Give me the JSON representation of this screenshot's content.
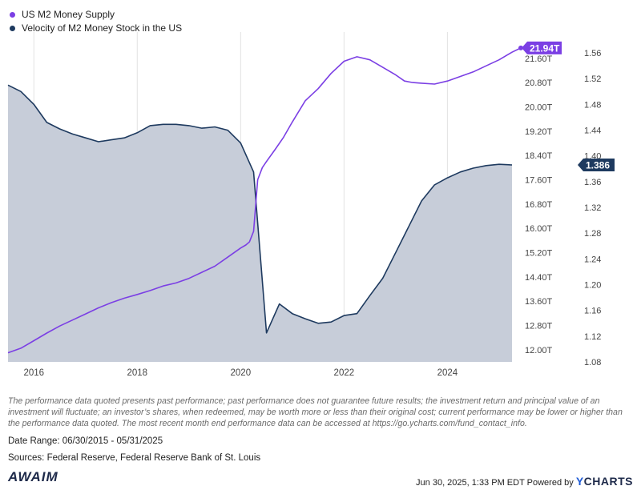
{
  "chart_data": {
    "type": "line",
    "series": [
      {
        "name": "US M2 Money Supply",
        "color": "#7b3fe4",
        "axis": "left",
        "unit": "T",
        "x": [
          2015.5,
          2015.75,
          2016.0,
          2016.25,
          2016.5,
          2016.75,
          2017.0,
          2017.25,
          2017.5,
          2017.75,
          2018.0,
          2018.25,
          2018.5,
          2018.75,
          2019.0,
          2019.25,
          2019.5,
          2019.75,
          2020.0,
          2020.1,
          2020.17,
          2020.25,
          2020.33,
          2020.42,
          2020.5,
          2020.67,
          2020.83,
          2021.0,
          2021.25,
          2021.5,
          2021.75,
          2022.0,
          2022.25,
          2022.5,
          2022.75,
          2023.0,
          2023.17,
          2023.33,
          2023.5,
          2023.75,
          2024.0,
          2024.25,
          2024.5,
          2024.75,
          2025.0,
          2025.25,
          2025.42
        ],
        "values": [
          11.9,
          12.05,
          12.3,
          12.55,
          12.78,
          12.98,
          13.18,
          13.38,
          13.55,
          13.7,
          13.82,
          13.95,
          14.1,
          14.2,
          14.35,
          14.55,
          14.75,
          15.05,
          15.35,
          15.45,
          15.55,
          15.9,
          17.6,
          18.0,
          18.2,
          18.6,
          19.0,
          19.5,
          20.2,
          20.6,
          21.1,
          21.5,
          21.65,
          21.55,
          21.3,
          21.05,
          20.85,
          20.8,
          20.78,
          20.75,
          20.85,
          21.0,
          21.15,
          21.35,
          21.55,
          21.8,
          21.94
        ]
      },
      {
        "name": "Velocity of M2 Money Stock in the US",
        "color": "#1e3a5f",
        "fill": "#c7cdd9",
        "axis": "right",
        "x": [
          2015.5,
          2015.75,
          2016.0,
          2016.25,
          2016.5,
          2016.75,
          2017.0,
          2017.25,
          2017.5,
          2017.75,
          2018.0,
          2018.25,
          2018.5,
          2018.75,
          2019.0,
          2019.25,
          2019.5,
          2019.75,
          2020.0,
          2020.25,
          2020.5,
          2020.75,
          2021.0,
          2021.25,
          2021.5,
          2021.75,
          2022.0,
          2022.25,
          2022.5,
          2022.75,
          2023.0,
          2023.25,
          2023.5,
          2023.75,
          2024.0,
          2024.25,
          2024.5,
          2024.75,
          2025.0,
          2025.25
        ],
        "values": [
          1.51,
          1.5,
          1.48,
          1.452,
          1.442,
          1.434,
          1.428,
          1.422,
          1.425,
          1.428,
          1.436,
          1.447,
          1.449,
          1.449,
          1.447,
          1.443,
          1.445,
          1.44,
          1.42,
          1.375,
          1.125,
          1.17,
          1.155,
          1.147,
          1.14,
          1.142,
          1.152,
          1.155,
          1.183,
          1.21,
          1.25,
          1.29,
          1.33,
          1.355,
          1.366,
          1.375,
          1.381,
          1.385,
          1.387,
          1.386
        ]
      }
    ],
    "xlim": [
      2015.5,
      2025.42
    ],
    "x_ticks": [
      "2016",
      "2018",
      "2020",
      "2022",
      "2024"
    ],
    "x_tick_values": [
      2016,
      2018,
      2020,
      2022,
      2024
    ],
    "y_left_lim": [
      11.6,
      22.2
    ],
    "y_left_ticks": [
      12.0,
      12.8,
      13.6,
      14.4,
      15.2,
      16.0,
      16.8,
      17.6,
      18.4,
      19.2,
      20.0,
      20.8,
      21.6
    ],
    "y_left_labels": [
      "12.00T",
      "12.80T",
      "13.60T",
      "14.40T",
      "15.20T",
      "16.00T",
      "16.80T",
      "17.60T",
      "18.40T",
      "19.20T",
      "20.00T",
      "20.80T",
      "21.60T"
    ],
    "y_right_lim": [
      1.08,
      1.58
    ],
    "y_right_ticks": [
      1.08,
      1.12,
      1.16,
      1.2,
      1.24,
      1.28,
      1.32,
      1.36,
      1.4,
      1.44,
      1.48,
      1.52,
      1.56
    ],
    "y_right_labels": [
      "1.08",
      "1.12",
      "1.16",
      "1.20",
      "1.24",
      "1.28",
      "1.32",
      "1.36",
      "1.40",
      "1.44",
      "1.48",
      "1.52",
      "1.56"
    ],
    "last_value_labels": {
      "left": "21.94T",
      "right": "1.386"
    },
    "grid": "vertical",
    "legend": "top-left"
  },
  "legend": {
    "m2": "US M2 Money Supply",
    "velocity": "Velocity of M2 Money Stock in the US"
  },
  "disclaimer": "The performance data quoted presents past performance; past performance does not guarantee future results; the investment return and principal value of an investment will fluctuate; an investor’s shares, when redeemed, may be worth more or less than their original cost; current performance may be lower or higher than the performance data quoted. The most recent month end performance data can be accessed at https://go.ycharts.com/fund_contact_info.",
  "date_range": "Date Range: 06/30/2015 - 05/31/2025",
  "sources": "Sources: Federal Reserve, Federal Reserve Bank of St. Louis",
  "logo_text": "AWAIM",
  "footer": {
    "timestamp": "Jun 30, 2025, 1:33 PM EDT Powered by",
    "brand_y": "Y",
    "brand_rest": "CHARTS"
  }
}
